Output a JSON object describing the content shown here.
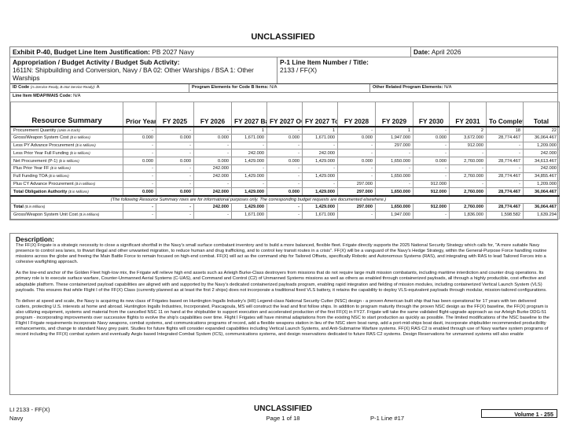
{
  "classification": "UNCLASSIFIED",
  "header": {
    "exhibit_label": "Exhibit P-40, Budget Line Item Justification:",
    "exhibit_value": "PB 2027 Navy",
    "date_label": "Date:",
    "date_value": "April 2026",
    "appropriation_label": "Appropriation / Budget Activity / Budget Sub Activity:",
    "appropriation_value": "1611N: Shipbuilding and Conversion, Navy / BA 02: Other Warships / BSA 1: Other Warships",
    "p1_label": "P-1 Line Item Number / Title:",
    "p1_value": "2133 / FF(X)",
    "id_code_label": "ID Code",
    "id_code_note": "(A=Service Ready, B=Not Service Ready)",
    "id_code_value": ": A",
    "pe_code_b_label": "Program Elements for Code B Items:",
    "pe_code_b_value": "N/A",
    "other_pe_label": "Other Related Program Elements:",
    "other_pe_value": "N/A",
    "mdap_label": "Line Item MDAP/MAIS Code:",
    "mdap_value": "N/A"
  },
  "table": {
    "columns": [
      "Resource Summary",
      "Prior Years",
      "FY 2025",
      "FY 2026",
      "FY 2027 Base",
      "FY 2027 OOC",
      "FY 2027 Total",
      "FY 2028",
      "FY 2029",
      "FY 2030",
      "FY 2031",
      "To Complete",
      "Total"
    ],
    "rows": [
      {
        "label": "Procurement Quantity",
        "unit": "(Units in Each)",
        "values": [
          "-",
          "-",
          "-",
          "1",
          "-",
          "1",
          "-",
          "1",
          "-",
          "2",
          "18",
          "22"
        ]
      },
      {
        "label": "Gross/Weapon System Cost",
        "unit": "($ in Millions)",
        "values": [
          "0.000",
          "0.000",
          "0.000",
          "1,671.000",
          "0.000",
          "1,671.000",
          "0.000",
          "1,947.000",
          "0.000",
          "3,672.000",
          "28,774.467",
          "36,064.467"
        ]
      },
      {
        "label": "Less PY Advance Procurement",
        "unit": "($ in Millions)",
        "values": [
          "-",
          "-",
          "-",
          "-",
          "-",
          "-",
          "-",
          "297.000",
          "-",
          "912.000",
          "-",
          "1,209.000"
        ]
      },
      {
        "label": "Less Prior Year Full Funding",
        "unit": "($ in Millions)",
        "values": [
          "-",
          "-",
          "-",
          "242.000",
          "-",
          "242.000",
          "-",
          "-",
          "-",
          "-",
          "-",
          "242.000"
        ]
      },
      {
        "label": "Net Procurement (P-1)",
        "unit": "($ in Millions)",
        "values": [
          "0.000",
          "0.000",
          "0.000",
          "1,429.000",
          "0.000",
          "1,429.000",
          "0.000",
          "1,650.000",
          "0.000",
          "2,760.000",
          "28,774.467",
          "34,613.467"
        ]
      },
      {
        "label": "Plus Prior Year FF",
        "unit": "($ in Millions)",
        "values": [
          "-",
          "-",
          "242.000",
          "-",
          "-",
          "-",
          "-",
          "-",
          "-",
          "-",
          "-",
          "242.000"
        ]
      },
      {
        "label": "Full Funding TOA",
        "unit": "($ in Millions)",
        "values": [
          "-",
          "-",
          "242.000",
          "1,429.000",
          "-",
          "1,429.000",
          "-",
          "1,650.000",
          "-",
          "2,760.000",
          "28,774.467",
          "34,855.467"
        ]
      },
      {
        "label": "Plus CY Advance Procurement",
        "unit": "($ in Millions)",
        "values": [
          "-",
          "-",
          "-",
          "-",
          "-",
          "-",
          "297.000",
          "-",
          "912.000",
          "-",
          "-",
          "1,209.000"
        ]
      },
      {
        "label": "Total Obligation Authority",
        "unit": "($ in Millions)",
        "bold": true,
        "values": [
          "0.000",
          "0.000",
          "242.000",
          "1,429.000",
          "0.000",
          "1,429.000",
          "297.000",
          "1,650.000",
          "912.000",
          "2,760.000",
          "28,774.467",
          "36,064.467"
        ]
      }
    ],
    "note": "(The following Resource Summary rows are for informational purposes only. The corresponding budget requests are documented elsewhere.)",
    "info_rows": [
      {
        "label": "Total",
        "unit": "($ in Millions)",
        "bold": true,
        "values": [
          "-",
          "-",
          "242.000",
          "1,429.000",
          "-",
          "1,429.000",
          "297.000",
          "1,650.000",
          "912.000",
          "2,760.000",
          "28,774.467",
          "36,064.467"
        ]
      },
      {
        "label": "Gross/Weapon System Unit Cost",
        "unit": "($ in Millions)",
        "values": [
          "-",
          "-",
          "-",
          "1,671.000",
          "-",
          "1,671.000",
          "-",
          "1,947.000",
          "-",
          "1,836.000",
          "1,598.582",
          "1,639.294"
        ]
      }
    ]
  },
  "description": {
    "title": "Description:",
    "paragraphs": [
      "The FF(X) Frigate is a strategic necessity to close a significant shortfall in the Navy's small surface combatant inventory and to build a more balanced, flexible fleet. Frigate directly supports the 2025 National Security Strategy which calls for, \"A more suitable Navy presence to control sea lanes, to thwart illegal and other unwanted migration, to reduce human and drug trafficking, and to control key transit routes in a crisis\". FF(X) will be a vanguard of the Navy's Hedge Strategy, within the General-Purpose Force handling routine missions across the globe and freeing the Main Battle Force to remain focused on high-end combat.  FF(X) will act as the command ship for Tailored Offsets, specifically Robotic and Autonomous Systems (RAS), and integrating with RAS to lead Tailored Forces into a cohesive warfighting approach.",
      "As the low-end anchor of the Golden Fleet high-low mix, the Frigate will relieve high end assets such as Arleigh Burke-Class destroyers from missions that do not require large multi mission combatants, including maritime interdiction and counter drug operations. Its primary role is to execute surface warfare, Counter-Unmanned Aerial Systems (C-UAS), and Command and Control (C2) of Unmanned Systems missions as well as others as enabled through containerized payloads, all through a highly producible, cost effective and adaptable platform. These containerized payload capabilities are aligned with and supported by the Navy's dedicated containerized payloads program, enabling rapid integration and fielding of mission modules, including containerized Vertical Launch System (VLS) payloads. This ensures that while Flight I of the FF(X) Class (currently planned as at least the first 2 ships) does not incorporate a traditional fixed VLS battery, it retains the capability to deploy VLS-equivalent payloads through modular, mission-tailored configurations.",
      "To deliver at speed and scale, the Navy is acquiring its new class of Frigates based on Huntington Ingalls Industry's (HII) Legend-class National Security Cutter (NSC) design - a proven American built ship that has been operational for 17 years with ten delivered cutters, protecting U.S. interests at home and abroad. Huntington Ingalls Industries, Incorporated, Pascagoula, MS will construct the lead and first follow ships. In addition to program maturity through the proven NSC design as the FF(X) baseline, the FF(X) program is also utilizing equipment, systems and material from the cancelled NSC 11 on hand at the shipbuilder to support execution and accelerated production of the first FF(X) in FY27. Frigate will take the same validated flight-upgrade approach as our Arleigh Burke DDG-51 program - incorporating improvements over successive flights to evolve the ship's capabilities over time. Flight I Frigates will have minimal adaptations from the existing NSC to start production as quickly as possible. The limited modifications of the NSC baseline to the Flight I Frigate requirements incorporate Navy weapons, combat systems, and communications programs of record, add a flexible weapons station in lieu of the NSC stern boat ramp, add a port-mid-ships boat davit, incorporate shipbuilder recommended producibility enhancements, and change to standard Navy grey paint. Studies for future flights will consider expanded capabilities including Vertical Launch Systems, and Anti-Submarine Warfare systems. FF(X) RAS C2 is enabled through use of Navy warfare system programs of record including the FF(X) combat system and eventually Aegis based Integrated Combat System (ICS), communications systems, and design reservations dedicated to future RAS C2 systems.  Design Reservations for unmanned systems will also enable"
    ]
  },
  "footer": {
    "line_item": "LI 2133 - FF(X)",
    "service": "Navy",
    "classification": "UNCLASSIFIED",
    "page": "Page 1 of 18",
    "p1_line": "P-1 Line #17",
    "volume": "Volume 1 - 255"
  }
}
